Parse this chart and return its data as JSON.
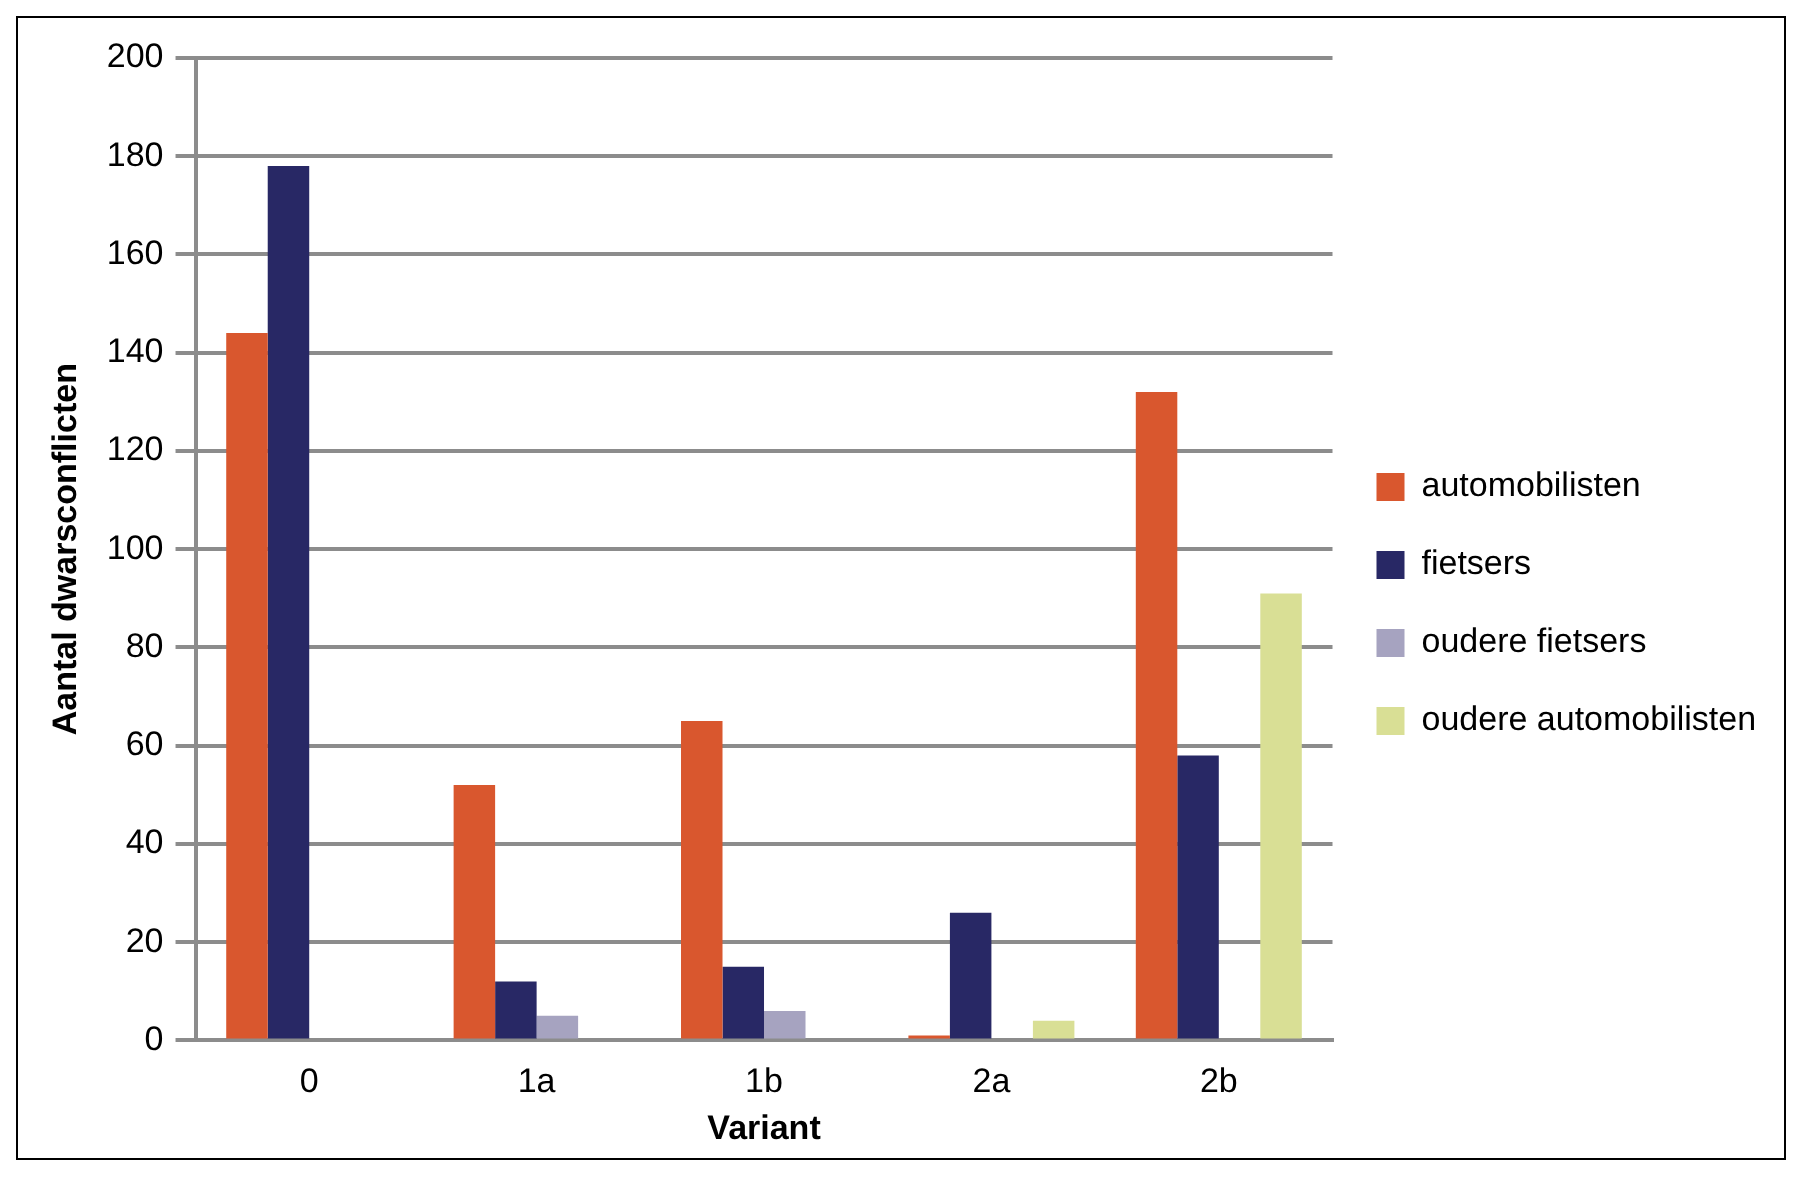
{
  "chart_data": {
    "type": "bar",
    "xlabel": "Variant",
    "ylabel": "Aantal dwarsconflicten",
    "categories": [
      "0",
      "1a",
      "1b",
      "2a",
      "2b"
    ],
    "series": [
      {
        "name": "automobilisten",
        "color": "#d9572e",
        "values": [
          144,
          52,
          65,
          1,
          132
        ]
      },
      {
        "name": "fietsers",
        "color": "#282865",
        "values": [
          178,
          12,
          15,
          26,
          58
        ]
      },
      {
        "name": "oudere fietsers",
        "color": "#a6a3c0",
        "values": [
          null,
          5,
          6,
          null,
          null
        ]
      },
      {
        "name": "oudere automobilisten",
        "color": "#d9df95",
        "values": [
          null,
          null,
          null,
          4,
          91
        ]
      }
    ],
    "ylim": [
      0,
      200
    ],
    "yticks": [
      0,
      20,
      40,
      60,
      80,
      100,
      120,
      140,
      160,
      180,
      200
    ],
    "grid": "y",
    "legend": "right"
  }
}
